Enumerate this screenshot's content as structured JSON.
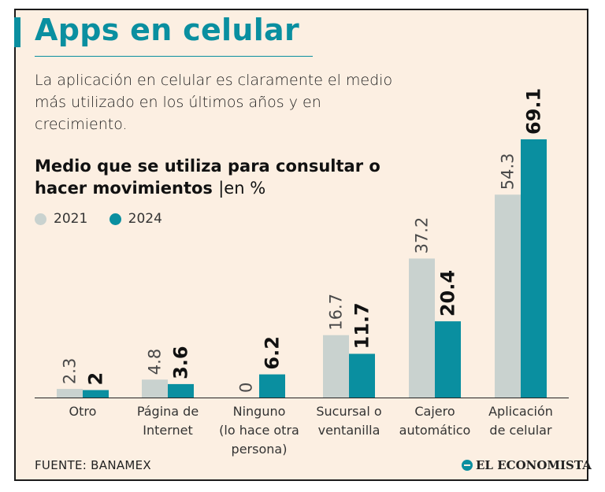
{
  "title": "Apps en celular",
  "subtitle": "La aplicación en celular es claramente el medio más utilizado en los últimos años y en crecimiento.",
  "source": "FUENTE: BANAMEX",
  "brand": "EL ECONOMISTA",
  "colors": {
    "accent": "#0a8fa0",
    "series_2021": "#c9d2cf",
    "series_2024": "#0a8fa0",
    "text": "#1b1b1b"
  },
  "chart_data": {
    "type": "bar",
    "title": "Medio que se utiliza para consultar o hacer movimientos",
    "unit_label": "|en %",
    "categories": [
      [
        "Otro"
      ],
      [
        "Página de",
        "Internet"
      ],
      [
        "Ninguno",
        "(lo hace otra",
        "persona)"
      ],
      [
        "Sucursal o",
        "ventanilla"
      ],
      [
        "Cajero",
        "automático"
      ],
      [
        "Aplicación",
        "de celular"
      ]
    ],
    "series": [
      {
        "name": "2021",
        "values": [
          2.3,
          4.8,
          0,
          16.7,
          37.2,
          54.3
        ],
        "labels": [
          "2.3",
          "4.8",
          "0",
          "16.7",
          "37.2",
          "54.3"
        ]
      },
      {
        "name": "2024",
        "values": [
          2,
          3.6,
          6.2,
          11.7,
          20.4,
          69.1
        ],
        "labels": [
          "2",
          "3.6",
          "6.2",
          "11.7",
          "20.4",
          "69.1"
        ]
      }
    ],
    "ylim": [
      0,
      69.1
    ],
    "grid": false,
    "legend": "top-left"
  }
}
